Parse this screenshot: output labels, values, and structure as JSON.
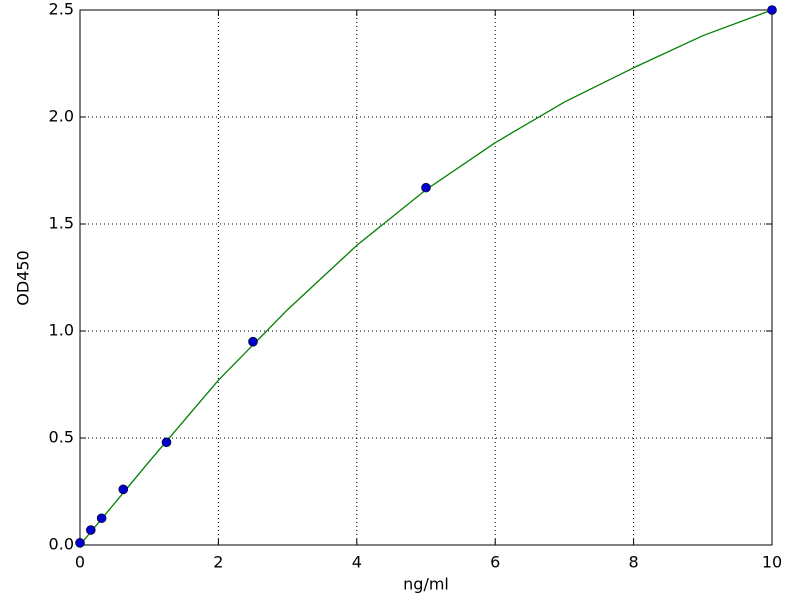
{
  "chart_data": {
    "type": "scatter",
    "x_label": "ng/ml",
    "y_label": "OD450",
    "xlim": [
      0,
      10
    ],
    "ylim": [
      0,
      2.5
    ],
    "xticks": [
      0,
      2,
      4,
      6,
      8,
      10
    ],
    "yticks": [
      {
        "value": 0,
        "label": "0.0"
      },
      0.5,
      {
        "value": 1,
        "label": "1.0"
      },
      1.5,
      {
        "value": 2,
        "label": "2.0"
      },
      2.5
    ],
    "grid": true,
    "series": [
      {
        "style": "line",
        "color": "#008000",
        "x": [
          0,
          1,
          2,
          3,
          4,
          5,
          6,
          7,
          8,
          9,
          10
        ],
        "values": [
          0.0,
          0.39,
          0.77,
          1.1,
          1.4,
          1.66,
          1.88,
          2.07,
          2.23,
          2.38,
          2.5
        ]
      },
      {
        "style": "markers",
        "color": "#0000cc",
        "x": [
          0,
          0.156,
          0.3125,
          0.625,
          1.25,
          2.5,
          5,
          10
        ],
        "values": [
          0.01,
          0.07,
          0.125,
          0.26,
          0.48,
          0.95,
          1.67,
          2.5
        ]
      }
    ]
  }
}
